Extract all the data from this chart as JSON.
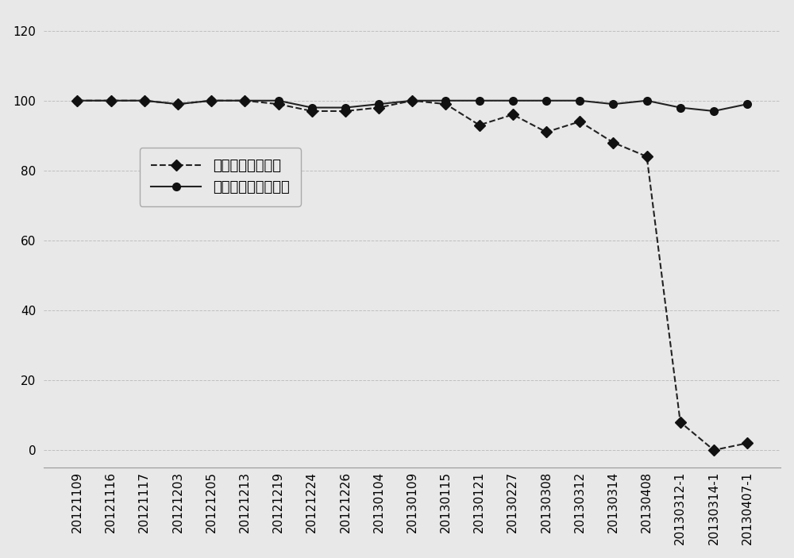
{
  "x_labels": [
    "20121109",
    "20121116",
    "20121117",
    "20121203",
    "20121205",
    "20121213",
    "20121219",
    "20121224",
    "20121226",
    "20130104",
    "20130109",
    "20130115",
    "20130121",
    "20130227",
    "20130308",
    "20130312",
    "20130314",
    "20130408",
    "20130312-1",
    "20130314-1",
    "20130407-1"
  ],
  "series1_label": "训练集参数标准化",
  "series2_label": "标准样品参数标准化",
  "series1_values": [
    100,
    100,
    100,
    99,
    100,
    100,
    99,
    97,
    97,
    98,
    100,
    99,
    93,
    96,
    91,
    94,
    88,
    84,
    8,
    0,
    2
  ],
  "series2_values": [
    100,
    100,
    100,
    99,
    100,
    100,
    100,
    98,
    98,
    99,
    100,
    100,
    100,
    100,
    100,
    100,
    99,
    100,
    98,
    97,
    99
  ],
  "ylim": [
    -5,
    125
  ],
  "yticks": [
    0,
    20,
    40,
    60,
    80,
    100,
    120
  ],
  "plot_bg_color": "#e8e8e8",
  "line1_color": "#222222",
  "line2_color": "#222222",
  "marker_color": "#111111",
  "grid_color": "#bbbbbb",
  "line1_style": "--",
  "line2_style": "-",
  "marker1_style": "D",
  "marker2_style": "o",
  "marker_size": 7,
  "line_width": 1.5,
  "legend_fontsize": 13,
  "tick_fontsize": 11
}
